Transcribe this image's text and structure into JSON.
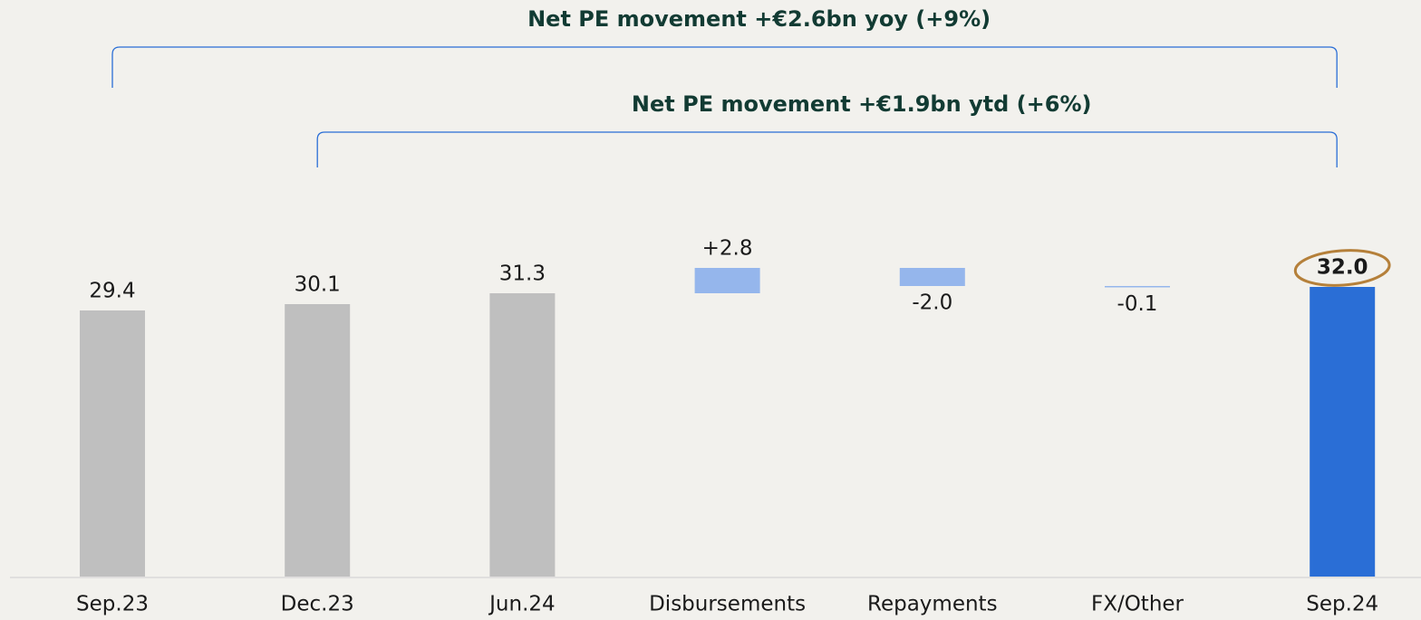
{
  "chart_data": {
    "type": "waterfall",
    "categories": [
      "Sep.23",
      "Dec.23",
      "Jun.24",
      "Disbursements",
      "Repayments",
      "FX/Other",
      "Sep.24"
    ],
    "values": [
      29.4,
      30.1,
      31.3,
      2.8,
      -2.0,
      -0.1,
      32.0
    ],
    "value_labels": [
      "29.4",
      "30.1",
      "31.3",
      "+2.8",
      "-2.0",
      "-0.1",
      "32.0"
    ],
    "measures": [
      "absolute",
      "absolute",
      "absolute",
      "relative",
      "relative",
      "relative",
      "absolute"
    ],
    "colors": [
      "#bfbfbf",
      "#bfbfbf",
      "#bfbfbf",
      "#95b6ec",
      "#95b6ec",
      "#95b6ec",
      "#2a6ed6"
    ],
    "ylim": [
      0,
      40
    ],
    "highlight": "Sep.24",
    "annotations": [
      {
        "text": "Net PE movement +€2.6bn yoy (+9%)",
        "from": "Sep.23",
        "to": "Sep.24"
      },
      {
        "text": "Net PE movement +€1.9bn ytd (+6%)",
        "from": "Dec.23",
        "to": "Sep.24"
      }
    ]
  }
}
